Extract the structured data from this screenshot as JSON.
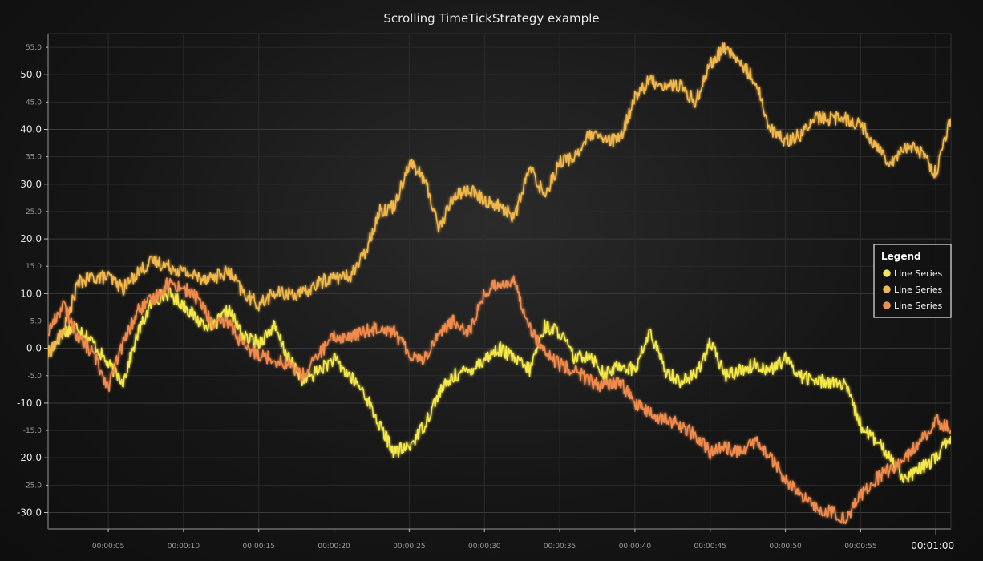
{
  "chart_data": {
    "type": "line",
    "title": "Scrolling TimeTickStrategy example",
    "xlabel": "",
    "ylabel": "",
    "x_unit": "seconds",
    "xlim": [
      1,
      61
    ],
    "ylim": [
      -33,
      57.5
    ],
    "grid": true,
    "y_ticks_major": [
      "-30.0",
      "-20.0",
      "-10.0",
      "0.0",
      "10.0",
      "20.0",
      "30.0",
      "40.0",
      "50.0"
    ],
    "y_ticks_minor": [
      "-25.0",
      "-15.0",
      "-5.0",
      "5.0",
      "15.0",
      "25.0",
      "35.0",
      "45.0",
      "55.0"
    ],
    "x_ticks_minor": [
      "00:00:05",
      "00:00:10",
      "00:00:15",
      "00:00:20",
      "00:00:25",
      "00:00:30",
      "00:00:35",
      "00:00:40",
      "00:00:45",
      "00:00:50",
      "00:00:55"
    ],
    "x_tick_major": "00:01:00",
    "legend": {
      "title": "Legend",
      "position": "right",
      "entries": [
        "Line Series",
        "Line Series",
        "Line Series"
      ]
    },
    "x": [
      1,
      2,
      3,
      4,
      5,
      6,
      7,
      8,
      9,
      10,
      11,
      12,
      13,
      14,
      15,
      16,
      17,
      18,
      19,
      20,
      21,
      22,
      23,
      24,
      25,
      26,
      27,
      28,
      29,
      30,
      31,
      32,
      33,
      34,
      35,
      36,
      37,
      38,
      39,
      40,
      41,
      42,
      43,
      44,
      45,
      46,
      47,
      48,
      49,
      50,
      51,
      52,
      53,
      54,
      55,
      56,
      57,
      58,
      59,
      60,
      61
    ],
    "series": [
      {
        "name": "Line Series",
        "color": "#f5e94a",
        "values": [
          -1,
          3,
          4,
          1,
          -3,
          -6,
          3,
          9,
          10,
          8,
          5,
          4,
          7,
          2,
          1,
          4,
          -2,
          -6,
          -4,
          -2,
          -5,
          -8,
          -14,
          -19,
          -18,
          -14,
          -8,
          -5,
          -4,
          -2,
          0,
          -2,
          -4,
          4,
          3,
          -2,
          -1,
          -5,
          -3,
          -4,
          3,
          -4,
          -6,
          -5,
          1,
          -5,
          -4,
          -3,
          -4,
          -2,
          -5,
          -6,
          -6,
          -7,
          -14,
          -17,
          -20,
          -24,
          -22,
          -20,
          -16
        ]
      },
      {
        "name": "Line Series",
        "color": "#f2b84b",
        "values": [
          -1,
          3,
          12,
          13,
          13,
          11,
          14,
          16,
          15,
          14,
          13,
          13,
          14,
          10,
          8,
          10,
          10,
          10,
          12,
          13,
          13,
          17,
          25,
          26,
          34,
          31,
          22,
          28,
          29,
          27,
          26,
          24,
          33,
          28,
          34,
          35,
          39,
          38,
          38,
          46,
          49,
          48,
          48,
          45,
          52,
          55,
          52,
          49,
          40,
          38,
          39,
          42,
          42,
          42,
          41,
          37,
          34,
          37,
          36,
          32,
          42
        ]
      },
      {
        "name": "Line Series",
        "color": "#f28c4e",
        "values": [
          3,
          8,
          2,
          -1,
          -7,
          1,
          7,
          9,
          12,
          11,
          9,
          4,
          5,
          0,
          -1,
          -2,
          -3,
          -5,
          -1,
          2,
          2,
          3,
          4,
          3,
          -1,
          -2,
          3,
          5,
          3,
          10,
          12,
          12,
          4,
          -1,
          -3,
          -4,
          -6,
          -7,
          -6,
          -10,
          -12,
          -13,
          -14,
          -16,
          -19,
          -18,
          -19,
          -17,
          -20,
          -24,
          -27,
          -29,
          -30,
          -31,
          -27,
          -24,
          -22,
          -20,
          -17,
          -13,
          -15
        ]
      }
    ]
  }
}
